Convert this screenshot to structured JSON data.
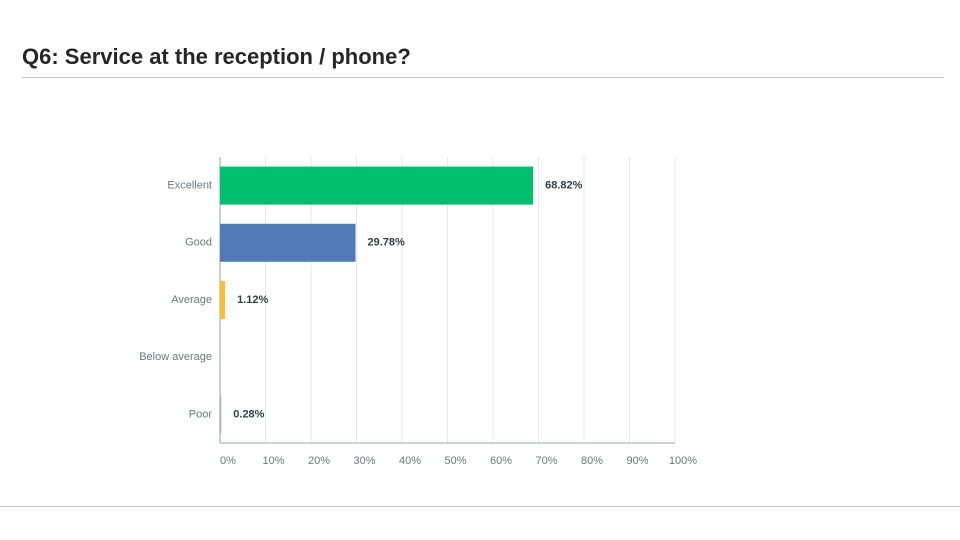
{
  "chart_data": {
    "type": "hbar",
    "title": "Q6:  Service at the reception / phone?",
    "categories": [
      "Excellent",
      "Good",
      "Average",
      "Below average",
      "Poor"
    ],
    "values": [
      68.82,
      29.78,
      1.12,
      null,
      0.28
    ],
    "value_labels": [
      "68.82%",
      "29.78%",
      "1.12%",
      null,
      "0.28%"
    ],
    "colors": [
      "#00bf6f",
      "#507cb6",
      "#f7c137",
      "#6bc8cd",
      "#a6b1b8"
    ],
    "xlim": [
      0,
      100
    ],
    "xticks": [
      {
        "value": 0,
        "label": "0%"
      },
      {
        "value": 10,
        "label": "10%"
      },
      {
        "value": 20,
        "label": "20%"
      },
      {
        "value": 30,
        "label": "30%"
      },
      {
        "value": 40,
        "label": "40%"
      },
      {
        "value": 50,
        "label": "50%"
      },
      {
        "value": 60,
        "label": "60%"
      },
      {
        "value": 70,
        "label": "70%"
      },
      {
        "value": 80,
        "label": "80%"
      },
      {
        "value": 90,
        "label": "90%"
      },
      {
        "value": 100,
        "label": "100%"
      }
    ],
    "grid": true
  }
}
